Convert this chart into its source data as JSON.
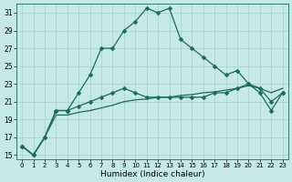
{
  "title": "",
  "xlabel": "Humidex (Indice chaleur)",
  "bg_color": "#c5e8e8",
  "line_color": "#1a6b5a",
  "grid_color": "#a8d0d0",
  "xlim": [
    -0.5,
    23.5
  ],
  "ylim": [
    14.5,
    32
  ],
  "yticks": [
    15,
    17,
    19,
    21,
    23,
    25,
    27,
    29,
    31
  ],
  "xticks": [
    0,
    1,
    2,
    3,
    4,
    5,
    6,
    7,
    8,
    9,
    10,
    11,
    12,
    13,
    14,
    15,
    16,
    17,
    18,
    19,
    20,
    21,
    22,
    23
  ],
  "line1_x": [
    0,
    1,
    2,
    3,
    4,
    5,
    6,
    7,
    8,
    9,
    10,
    11,
    12,
    13,
    14,
    15,
    16,
    17,
    18,
    19,
    20,
    21,
    22,
    23
  ],
  "line1_y": [
    16,
    15,
    17,
    20,
    20,
    22,
    24,
    27,
    27,
    29,
    30,
    31.5,
    31,
    31.5,
    28,
    27,
    26,
    25,
    24,
    24.5,
    23,
    22,
    20,
    22
  ],
  "line2_x": [
    0,
    1,
    2,
    3,
    4,
    5,
    6,
    7,
    8,
    9,
    10,
    11,
    12,
    13,
    14,
    15,
    16,
    17,
    18,
    19,
    20,
    21,
    22,
    23
  ],
  "line2_y": [
    16,
    15,
    17,
    20,
    20,
    20.5,
    21,
    21.5,
    22,
    22.5,
    22,
    21.5,
    21.5,
    21.5,
    21.5,
    21.5,
    21.5,
    22,
    22,
    22.5,
    23,
    22.5,
    21,
    22
  ],
  "line3_x": [
    0,
    1,
    2,
    3,
    4,
    5,
    6,
    7,
    8,
    9,
    10,
    11,
    12,
    13,
    14,
    15,
    16,
    17,
    18,
    19,
    20,
    21,
    22,
    23
  ],
  "line3_y": [
    16,
    15,
    17,
    19.5,
    19.5,
    19.8,
    20,
    20.3,
    20.6,
    21,
    21.2,
    21.3,
    21.5,
    21.5,
    21.7,
    21.8,
    22,
    22.1,
    22.3,
    22.5,
    22.8,
    22.5,
    22,
    22.5
  ]
}
